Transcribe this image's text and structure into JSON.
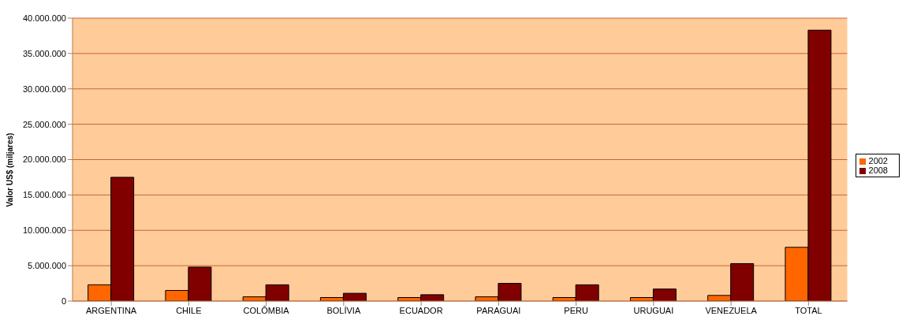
{
  "chart_data": {
    "type": "bar",
    "ylabel": "Valor US$ (miljares)",
    "categories": [
      "ARGENTINA",
      "CHILE",
      "COLÔMBIA",
      "BOLÍVIA",
      "ECUADOR",
      "PARAGUAI",
      "PERU",
      "URUGUAI",
      "VENEZUELA",
      "TOTAL"
    ],
    "series": [
      {
        "name": "2002",
        "color": "#ff6600",
        "values": [
          2300000,
          1500000,
          600000,
          500000,
          500000,
          600000,
          500000,
          500000,
          800000,
          7600000
        ]
      },
      {
        "name": "2008",
        "color": "#800000",
        "values": [
          17500000,
          4800000,
          2300000,
          1100000,
          900000,
          2500000,
          2300000,
          1700000,
          5300000,
          38300000
        ]
      }
    ],
    "ylim": [
      0,
      40000000
    ],
    "yticks": [
      {
        "value": 0,
        "label": "0"
      },
      {
        "value": 5000000,
        "label": "5.000.000"
      },
      {
        "value": 10000000,
        "label": "10.000.000"
      },
      {
        "value": 15000000,
        "label": "15.000.000"
      },
      {
        "value": 20000000,
        "label": "20.000.000"
      },
      {
        "value": 25000000,
        "label": "25.000.000"
      },
      {
        "value": 30000000,
        "label": "30.000.000"
      },
      {
        "value": 35000000,
        "label": "35.000.000"
      },
      {
        "value": 40000000,
        "label": "40.000.000"
      }
    ],
    "grid": "y",
    "legend": "right"
  }
}
